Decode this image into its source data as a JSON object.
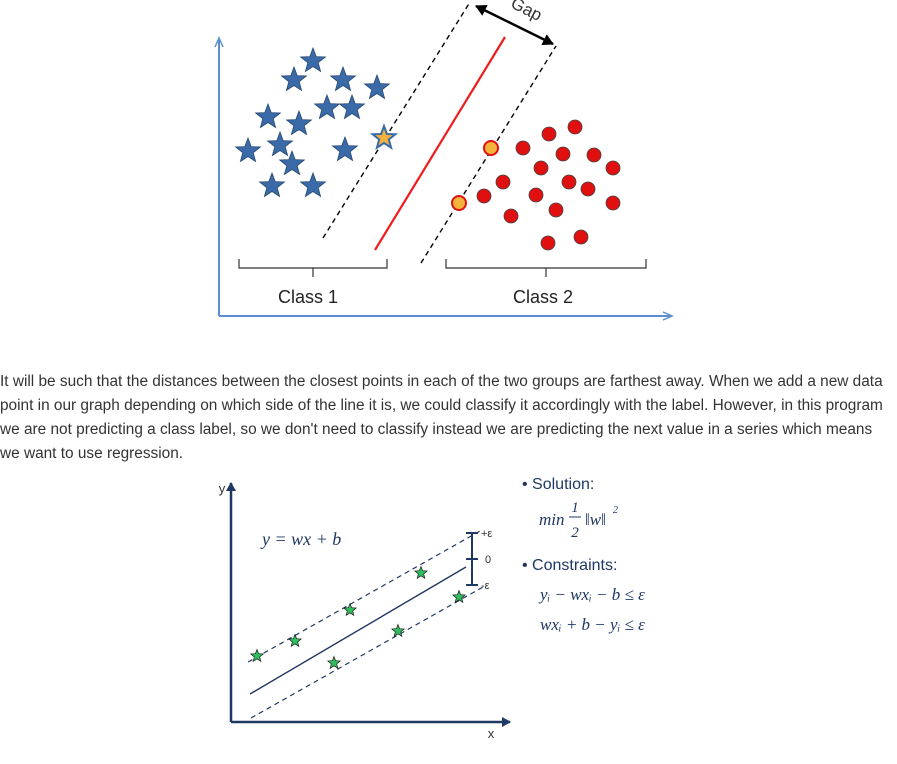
{
  "figure1": {
    "gap_label": "Gap",
    "class1_label": "Class 1",
    "class2_label": "Class 2"
  },
  "paragraph": "It will be such that the distances between the closest points in each of the two groups are farthest away. When we add a new data point in our graph depending on which side of the line it is, we could classify it accordingly with the label. However, in this program we are not predicting a class label, so we don't need to classify instead we are predicting the next value in a series which means we want to use regression.",
  "figure2": {
    "y_axis_label": "y",
    "x_axis_label": "x",
    "equation": "y = wx + b",
    "plus_eps": "+ε",
    "zero": "0",
    "minus_eps": "-ε",
    "solution_heading": "• Solution:",
    "solution_min": "min",
    "solution_num": "1",
    "solution_den": "2",
    "solution_norm": "‖w‖",
    "solution_exp": "2",
    "constraints_heading": "• Constraints:",
    "constraint1": "yᵢ − wxᵢ − b ≤ ε",
    "constraint2": "wxᵢ + b − yᵢ ≤ ε"
  },
  "colors": {
    "axis_blue": "#5b8fd0",
    "star_blue": "#3a6aa8",
    "dot_red": "#e01010",
    "dot_yellow": "#f3b33d",
    "star_green": "#2fbf5f",
    "line_red": "#ee1c1c"
  }
}
